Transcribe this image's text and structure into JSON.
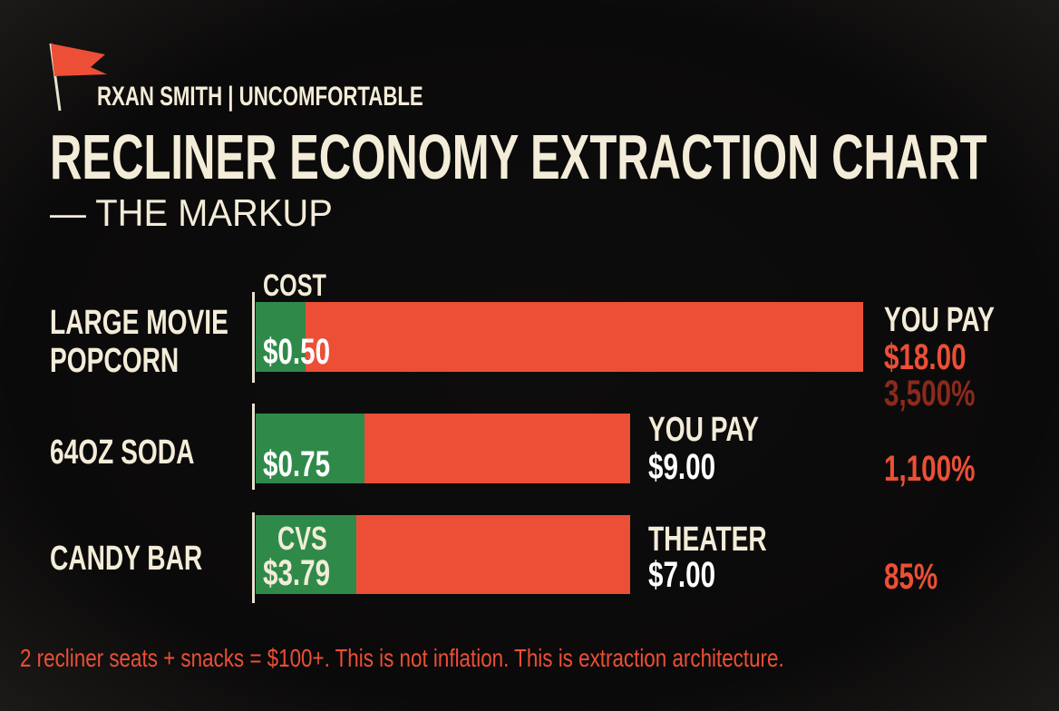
{
  "header": {
    "byline": "RXAN SMITH | UNCOMFORTABLE",
    "title": "RECLINER ECONOMY EXTRACTION CHART",
    "subtitle": "— THE MARKUP"
  },
  "rows": [
    {
      "label": "LARGE MOVIE POPCORN",
      "cost_label": "COST",
      "cost": "$0.50",
      "price_label": "YOU PAY",
      "price": "$18.00",
      "markup": "3,500%"
    },
    {
      "label": "64OZ SODA",
      "cost": "$0.75",
      "price_label": "YOU PAY",
      "price": "$9.00",
      "markup": "1,100%"
    },
    {
      "label": "CANDY BAR",
      "cost_label": "CVS",
      "cost": "$3.79",
      "price_label": "THEATER",
      "price": "$7.00",
      "markup": "85%"
    }
  ],
  "footer": "2 recliner seats + snacks = $100+. This is not inflation. This is extraction architecture."
}
